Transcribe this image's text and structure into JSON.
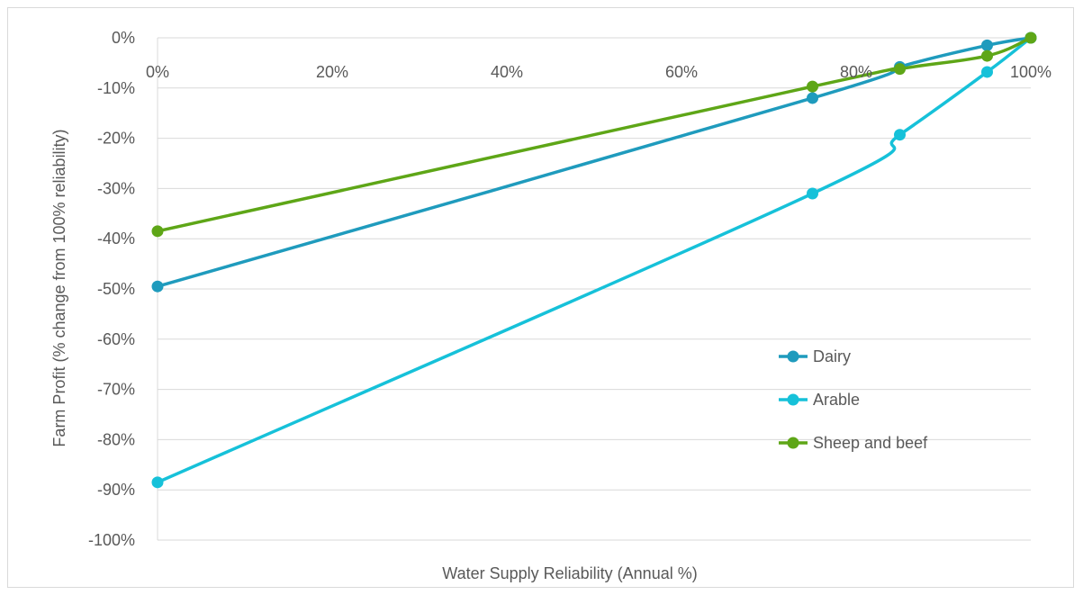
{
  "chart_data": {
    "type": "line",
    "title": "",
    "xlabel": "Water Supply Reliability (Annual %)",
    "ylabel": "Farm Profit (% change from 100% reliability)",
    "xlim": [
      0,
      100
    ],
    "ylim": [
      -100,
      0
    ],
    "x_ticks": [
      0,
      20,
      40,
      60,
      80,
      100
    ],
    "x_tick_labels": [
      "0%",
      "20%",
      "40%",
      "60%",
      "80%",
      "100%"
    ],
    "y_ticks": [
      0,
      -10,
      -20,
      -30,
      -40,
      -50,
      -60,
      -70,
      -80,
      -90,
      -100
    ],
    "y_tick_labels": [
      "0%",
      "-10%",
      "-20%",
      "-30%",
      "-40%",
      "-50%",
      "-60%",
      "-70%",
      "-80%",
      "-90%",
      "-100%"
    ],
    "grid": "horizontal",
    "legend_position": "right",
    "series": [
      {
        "name": "Dairy",
        "color": "#1f9bbd",
        "x": [
          0,
          75,
          85,
          95,
          100
        ],
        "y": [
          -49.5,
          -12,
          -5.8,
          -1.5,
          0
        ]
      },
      {
        "name": "Arable",
        "color": "#16c1d9",
        "x": [
          0,
          75,
          85,
          95,
          100
        ],
        "y": [
          -88.5,
          -31,
          -19.3,
          -6.8,
          0
        ]
      },
      {
        "name": "Sheep and beef",
        "color": "#5ea617",
        "x": [
          0,
          75,
          85,
          95,
          100
        ],
        "y": [
          -38.5,
          -9.7,
          -6.2,
          -3.6,
          0
        ]
      }
    ]
  }
}
